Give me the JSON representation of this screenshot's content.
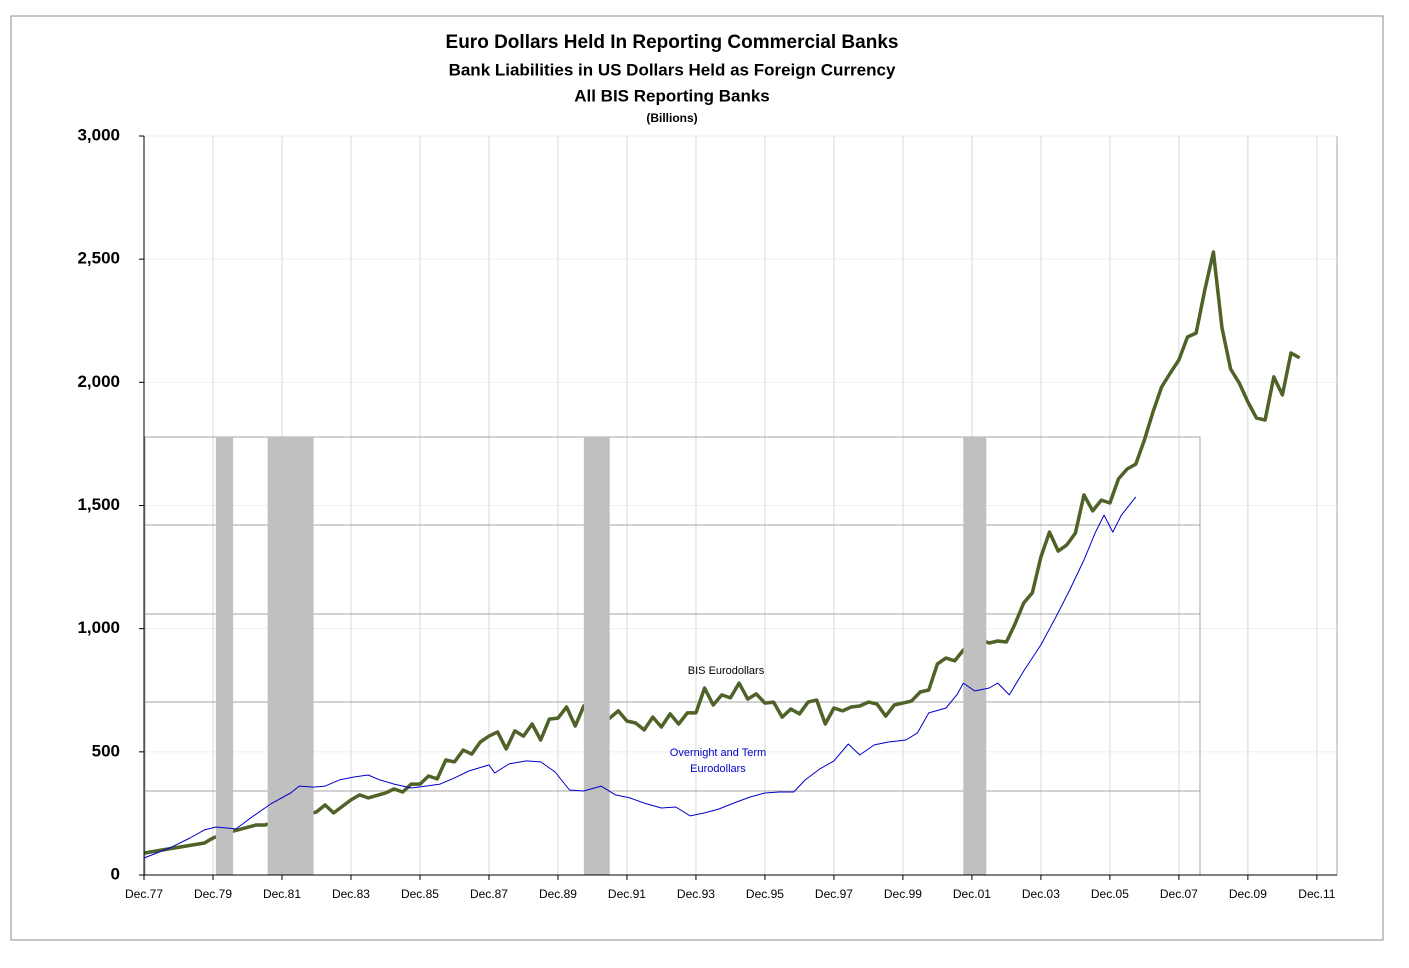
{
  "chart_data": {
    "type": "line",
    "title": "Euro Dollars Held In Reporting Commercial Banks",
    "subtitle": [
      "Bank Liabilities  in US Dollars Held as Foreign Currency",
      "All BIS Reporting Banks",
      "(Billions)"
    ],
    "annotations": {
      "bis": "BIS Eurodollars",
      "overnight": [
        "Overnight and Term",
        "Eurodollars"
      ]
    },
    "xlim": [
      "1977-12",
      "2012-07"
    ],
    "ylim": [
      0,
      3000
    ],
    "yticks": [
      0,
      500,
      {
        "value": 1000,
        "label": "1,000"
      },
      {
        "value": 1500,
        "label": "1,500"
      },
      {
        "value": 2000,
        "label": "2,000"
      },
      {
        "value": 2500,
        "label": "2,500"
      },
      {
        "value": 3000,
        "label": "3,000"
      }
    ],
    "xticks": [
      {
        "value": "1977-12",
        "label": "Dec.77"
      },
      {
        "value": "1979-12",
        "label": "Dec.79"
      },
      {
        "value": "1981-12",
        "label": "Dec.81"
      },
      {
        "value": "1983-12",
        "label": "Dec.83"
      },
      {
        "value": "1985-12",
        "label": "Dec.85"
      },
      {
        "value": "1987-12",
        "label": "Dec.87"
      },
      {
        "value": "1989-12",
        "label": "Dec.89"
      },
      {
        "value": "1991-12",
        "label": "Dec.91"
      },
      {
        "value": "1993-12",
        "label": "Dec.93"
      },
      {
        "value": "1995-12",
        "label": "Dec.95"
      },
      {
        "value": "1997-12",
        "label": "Dec.97"
      },
      {
        "value": "1999-12",
        "label": "Dec.99"
      },
      {
        "value": "2001-12",
        "label": "Dec.01"
      },
      {
        "value": "2003-12",
        "label": "Dec.03"
      },
      {
        "value": "2005-12",
        "label": "Dec.05"
      },
      {
        "value": "2007-12",
        "label": "Dec.07"
      },
      {
        "value": "2009-12",
        "label": "Dec.09"
      },
      {
        "value": "2011-12",
        "label": "Dec.11"
      }
    ],
    "grid": true,
    "shading": {
      "color": "#c0c0c0",
      "periods": [
        [
          "1980-01",
          "1980-07"
        ],
        [
          "1981-07",
          "1982-11"
        ],
        [
          "1990-09",
          "1991-06"
        ],
        [
          "2001-09",
          "2002-05"
        ]
      ]
    },
    "series": [
      {
        "color": "#4f6228",
        "width": 3.5,
        "x": [
          "1977-12",
          "1978-06",
          "1979-03",
          "1979-09",
          "1979-12",
          "1980-06",
          "1981-03",
          "1981-06",
          "1982-12",
          "1983-03",
          "1983-06",
          "1983-12",
          "1984-03",
          "1984-06",
          "1984-12",
          "1985-03",
          "1985-06",
          "1985-09",
          "1985-12",
          "1986-03",
          "1986-06",
          "1986-09",
          "1986-12",
          "1987-03",
          "1987-06",
          "1987-09",
          "1987-12",
          "1988-03",
          "1988-06",
          "1988-09",
          "1988-12",
          "1989-03",
          "1989-06",
          "1989-09",
          "1989-12",
          "1990-03",
          "1990-06",
          "1990-09",
          "1991-06",
          "1991-09",
          "1991-12",
          "1992-03",
          "1992-06",
          "1992-09",
          "1992-12",
          "1993-03",
          "1993-06",
          "1993-09",
          "1993-12",
          "1994-03",
          "1994-06",
          "1994-09",
          "1994-12",
          "1995-03",
          "1995-06",
          "1995-09",
          "1995-12",
          "1996-03",
          "1996-06",
          "1996-09",
          "1996-12",
          "1997-03",
          "1997-06",
          "1997-09",
          "1997-12",
          "1998-03",
          "1998-06",
          "1998-09",
          "1998-12",
          "1999-03",
          "1999-06",
          "1999-09",
          "1999-12",
          "2000-03",
          "2000-06",
          "2000-09",
          "2000-12",
          "2001-03",
          "2001-06",
          "2001-09",
          "2002-03",
          "2002-06",
          "2002-09",
          "2002-12",
          "2003-03",
          "2003-06",
          "2003-09",
          "2003-12",
          "2004-03",
          "2004-06",
          "2004-09",
          "2004-12",
          "2005-03",
          "2005-06",
          "2005-09",
          "2005-12",
          "2006-03",
          "2006-06",
          "2006-09",
          "2006-12",
          "2007-03",
          "2007-06",
          "2007-09",
          "2007-12",
          "2008-03",
          "2008-06",
          "2008-09",
          "2008-12",
          "2009-03",
          "2009-06",
          "2009-09",
          "2009-12",
          "2010-03",
          "2010-06",
          "2010-09",
          "2010-12",
          "2011-03",
          "2011-06"
        ],
        "values": [
          89,
          101,
          118,
          130,
          150,
          175,
          203,
          203,
          256,
          284,
          252,
          305,
          325,
          313,
          333,
          349,
          337,
          369,
          369,
          402,
          390,
          467,
          459,
          507,
          491,
          540,
          564,
          581,
          512,
          585,
          564,
          613,
          548,
          633,
          637,
          682,
          605,
          686,
          637,
          666,
          625,
          617,
          589,
          641,
          601,
          654,
          613,
          658,
          658,
          759,
          690,
          731,
          719,
          779,
          714,
          735,
          698,
          702,
          641,
          674,
          654,
          702,
          710,
          613,
          678,
          666,
          682,
          686,
          702,
          694,
          645,
          690,
          698,
          706,
          743,
          751,
          857,
          881,
          869,
          913,
          954,
          942,
          950,
          946,
          1019,
          1104,
          1145,
          1291,
          1392,
          1315,
          1340,
          1388,
          1543,
          1478,
          1522,
          1510,
          1608,
          1648,
          1668,
          1766,
          1880,
          1981,
          2038,
          2091,
          2184,
          2200,
          2375,
          2529,
          2221,
          2054,
          1997,
          1920,
          1855,
          1847,
          2022,
          1949,
          2119,
          2099
        ]
      },
      {
        "color": "#0000cc",
        "width": 1,
        "x": [
          "1977-12",
          "1978-09",
          "1979-04",
          "1979-09",
          "1980-01",
          "1980-08",
          "1981-01",
          "1981-08",
          "1982-03",
          "1982-06",
          "1982-11",
          "1983-03",
          "1983-08",
          "1984-01",
          "1984-06",
          "1984-10",
          "1985-03",
          "1985-09",
          "1986-02",
          "1986-07",
          "1986-12",
          "1987-05",
          "1987-12",
          "1988-02",
          "1988-07",
          "1989-01",
          "1989-06",
          "1989-11",
          "1990-04",
          "1990-09",
          "1991-03",
          "1991-08",
          "1992-01",
          "1992-06",
          "1992-12",
          "1993-05",
          "1993-10",
          "1994-03",
          "1994-08",
          "1995-02",
          "1995-07",
          "1995-12",
          "1996-05",
          "1996-10",
          "1997-02",
          "1997-07",
          "1997-12",
          "1998-05",
          "1998-09",
          "1999-02",
          "1999-07",
          "2000-01",
          "2000-05",
          "2000-09",
          "2001-03",
          "2001-07",
          "2001-09",
          "2002-01",
          "2002-06",
          "2002-09",
          "2003-01",
          "2003-06",
          "2003-12",
          "2004-05",
          "2004-10",
          "2005-03",
          "2005-07",
          "2005-10",
          "2006-01",
          "2006-04",
          "2006-09"
        ],
        "values": [
          69,
          110,
          150,
          183,
          195,
          187,
          231,
          288,
          333,
          361,
          357,
          361,
          386,
          398,
          406,
          386,
          369,
          353,
          361,
          369,
          394,
          422,
          447,
          414,
          451,
          463,
          459,
          418,
          345,
          341,
          361,
          325,
          313,
          292,
          272,
          276,
          240,
          252,
          268,
          296,
          317,
          333,
          337,
          337,
          386,
          430,
          463,
          532,
          487,
          528,
          540,
          548,
          576,
          658,
          678,
          735,
          779,
          747,
          759,
          779,
          731,
          828,
          934,
          1043,
          1157,
          1279,
          1392,
          1461,
          1392,
          1461,
          1535
        ]
      }
    ]
  }
}
